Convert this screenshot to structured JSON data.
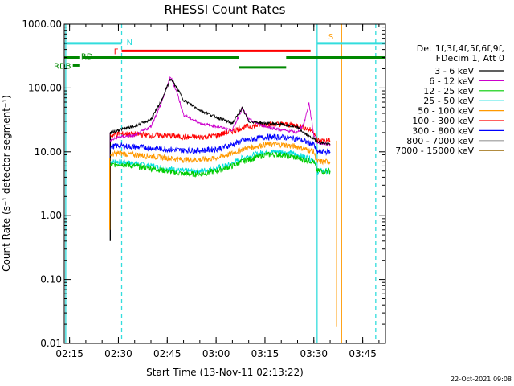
{
  "chart_data": {
    "type": "line",
    "title": "RHESSI Count Rates",
    "xlabel": "Start Time (13-Nov-11 02:13:22)",
    "ylabel": "Count Rate (s⁻¹ detector segment⁻¹)",
    "y_scale": "log",
    "xlim": [
      "02:13:22",
      "03:52:00"
    ],
    "ylim": [
      0.01,
      1000
    ],
    "x_ticks": [
      "02:15",
      "02:30",
      "02:45",
      "03:00",
      "03:15",
      "03:30",
      "03:45"
    ],
    "y_ticks": [
      "0.01",
      "0.10",
      "1.00",
      "10.00",
      "100.00",
      "1000.00"
    ],
    "grid": false,
    "legend_position": "right",
    "legend_header": [
      "Det 1f,3f,4f,5f,6f,9f,",
      "FDecim 1, Att 0"
    ],
    "series": [
      {
        "name": "3 - 6 keV",
        "color": "#000000",
        "x": [
          "02:27:30",
          "02:30:00",
          "02:35:00",
          "02:40:00",
          "02:43:00",
          "02:46:00",
          "02:48:00",
          "02:50:00",
          "02:55:00",
          "03:00:00",
          "03:05:00",
          "03:08:00",
          "03:10:00",
          "03:15:00",
          "03:20:00",
          "03:25:00",
          "03:28:00",
          "03:31:00",
          "03:32:00",
          "03:35:00"
        ],
        "y": [
          20,
          22,
          25,
          32,
          60,
          140,
          100,
          65,
          45,
          35,
          28,
          48,
          30,
          28,
          27,
          24,
          18,
          15,
          14,
          13
        ]
      },
      {
        "name": "6 - 12 keV",
        "color": "#cc00cc",
        "x": [
          "02:27:30",
          "02:30:00",
          "02:35:00",
          "02:40:00",
          "02:43:00",
          "02:46:00",
          "02:48:00",
          "02:50:00",
          "02:55:00",
          "03:00:00",
          "03:05:00",
          "03:08:00",
          "03:10:00",
          "03:15:00",
          "03:20:00",
          "03:25:00",
          "03:27:00",
          "03:28:30",
          "03:30:00",
          "03:31:00",
          "03:35:00"
        ],
        "y": [
          15,
          17,
          18,
          25,
          55,
          150,
          85,
          38,
          28,
          25,
          22,
          48,
          32,
          25,
          22,
          20,
          28,
          58,
          18,
          14,
          13
        ]
      },
      {
        "name": "12 - 25 keV",
        "color": "#00cc00",
        "x": [
          "02:27:30",
          "02:30:00",
          "02:35:00",
          "02:40:00",
          "02:45:00",
          "02:50:00",
          "02:55:00",
          "03:00:00",
          "03:05:00",
          "03:08:00",
          "03:15:00",
          "03:20:00",
          "03:25:00",
          "03:30:00",
          "03:31:00",
          "03:35:00"
        ],
        "y": [
          6,
          6.5,
          6,
          5.5,
          5,
          4.5,
          4.5,
          5,
          6,
          7,
          9,
          9,
          8,
          7,
          5,
          5
        ]
      },
      {
        "name": "25 - 50 keV",
        "color": "#00dddd",
        "x": [
          "02:27:30",
          "02:30:00",
          "02:35:00",
          "02:40:00",
          "02:45:00",
          "02:50:00",
          "02:55:00",
          "03:00:00",
          "03:05:00",
          "03:08:00",
          "03:15:00",
          "03:20:00",
          "03:25:00",
          "03:30:00",
          "03:31:00",
          "03:35:00"
        ],
        "y": [
          7,
          7,
          6.5,
          6,
          5.5,
          5,
          5,
          5.5,
          6.5,
          8,
          10,
          10,
          9,
          7.5,
          5,
          5
        ]
      },
      {
        "name": "50 - 100 keV",
        "color": "#ff9900",
        "x": [
          "02:27:30",
          "02:30:00",
          "02:35:00",
          "02:40:00",
          "02:45:00",
          "02:50:00",
          "02:55:00",
          "03:00:00",
          "03:05:00",
          "03:08:00",
          "03:15:00",
          "03:20:00",
          "03:25:00",
          "03:30:00",
          "03:31:00",
          "03:35:00"
        ],
        "y": [
          9,
          9.5,
          9,
          8.5,
          8,
          7.5,
          7.5,
          8,
          9.5,
          11,
          13,
          13,
          12,
          10,
          7,
          7
        ]
      },
      {
        "name": "100 - 300 keV",
        "color": "#ff0000",
        "x": [
          "02:27:30",
          "02:30:00",
          "02:35:00",
          "02:40:00",
          "02:45:00",
          "02:50:00",
          "02:55:00",
          "03:00:00",
          "03:05:00",
          "03:08:00",
          "03:15:00",
          "03:20:00",
          "03:25:00",
          "03:30:00",
          "03:31:00",
          "03:35:00"
        ],
        "y": [
          18,
          19,
          19,
          18,
          18,
          17,
          17,
          18,
          21,
          24,
          27,
          27,
          26,
          21,
          15,
          15
        ]
      },
      {
        "name": "300 - 800 keV",
        "color": "#0000ff",
        "x": [
          "02:27:30",
          "02:30:00",
          "02:35:00",
          "02:40:00",
          "02:45:00",
          "02:50:00",
          "02:55:00",
          "03:00:00",
          "03:05:00",
          "03:08:00",
          "03:15:00",
          "03:20:00",
          "03:25:00",
          "03:30:00",
          "03:31:00",
          "03:35:00"
        ],
        "y": [
          12,
          12.5,
          12,
          11.5,
          11,
          10.5,
          10.5,
          11,
          13,
          15,
          17,
          17,
          16,
          13,
          10,
          10
        ]
      },
      {
        "name": "800 - 7000 keV",
        "color": "#999999",
        "x": [],
        "y": []
      },
      {
        "name": "7000 - 15000 keV",
        "color": "#996600",
        "x": [],
        "y": []
      }
    ],
    "spikes": [
      {
        "x": "02:27:30",
        "top": 20,
        "bottom": 2.2,
        "color": "#cc00cc"
      },
      {
        "x": "02:27:30",
        "top": 20,
        "bottom": 0.4,
        "color": "#000000"
      },
      {
        "x": "02:27:20",
        "top": 8,
        "bottom": 0.6,
        "color": "#ff9900"
      },
      {
        "x": "03:37:00",
        "top": 15,
        "bottom": 0.018,
        "color": "#ff9900"
      }
    ],
    "bar_labels": {
      "n": "N",
      "f": "F",
      "s": "S",
      "rd": "RD",
      "rdb": "RDB"
    },
    "annotation_bars": [
      {
        "label": "n",
        "color": "#33dddd",
        "y": 500,
        "segments": [
          [
            "02:13:22",
            "02:31:00"
          ],
          [
            "03:35:30",
            "03:52:00"
          ]
        ]
      },
      {
        "label": "f",
        "color": "#ff0000",
        "y": 380,
        "segments": [
          [
            "02:31:00",
            "03:29:00"
          ]
        ]
      },
      {
        "label": "s",
        "color": "#33dddd",
        "y": 500,
        "segments": [
          [
            "03:31:00",
            "03:35:30"
          ]
        ]
      },
      {
        "label": "rd",
        "color": "#008800",
        "y": 300,
        "segments": [
          [
            "02:13:22",
            "02:18:00"
          ],
          [
            "02:19:00",
            "03:07:00"
          ],
          [
            "03:21:30",
            "03:52:00"
          ]
        ]
      },
      {
        "label": "rd",
        "color": "#008800",
        "y": 210,
        "segments": [
          [
            "03:07:00",
            "03:21:30"
          ]
        ]
      },
      {
        "label": "rdb",
        "color": "#008800",
        "y": 225,
        "segments": [
          [
            "02:16:00",
            "02:18:00"
          ]
        ]
      }
    ],
    "vertical_lines": [
      {
        "x": "02:13:50",
        "color": "#33dddd",
        "style": "solid"
      },
      {
        "x": "02:31:00",
        "color": "#33dddd",
        "style": "dashed"
      },
      {
        "x": "03:31:00",
        "color": "#33dddd",
        "style": "solid"
      },
      {
        "x": "03:38:30",
        "color": "#ff9900",
        "style": "solid"
      },
      {
        "x": "03:49:00",
        "color": "#33dddd",
        "style": "dashed"
      }
    ]
  },
  "footer": {
    "date": "22-Oct-2021 09:08"
  }
}
